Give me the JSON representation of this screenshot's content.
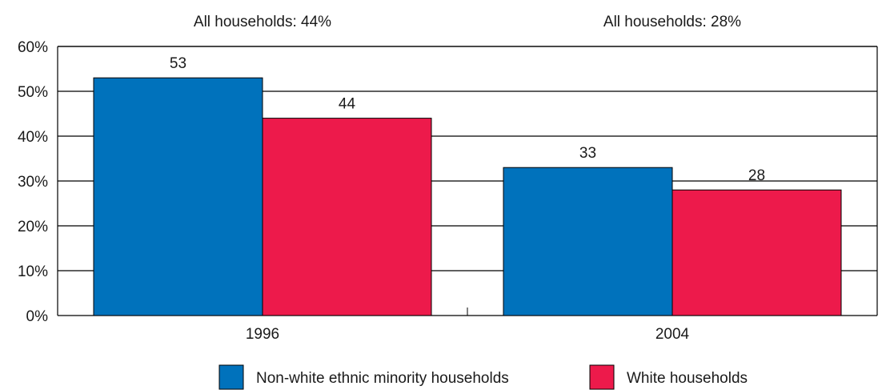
{
  "chart_data": {
    "type": "bar",
    "categories": [
      "1996",
      "2004"
    ],
    "series": [
      {
        "name": "Non-white ethnic minority households",
        "color": "#0072bc",
        "values": [
          53,
          33
        ]
      },
      {
        "name": "White households",
        "color": "#ed1a4b",
        "values": [
          44,
          28
        ]
      }
    ],
    "category_notes": [
      "All households: 44%",
      "All households: 28%"
    ],
    "yticks": [
      "0%",
      "10%",
      "20%",
      "30%",
      "40%",
      "50%",
      "60%"
    ],
    "ylim": [
      0,
      60
    ],
    "title": "",
    "xlabel": "",
    "ylabel": "",
    "grid": true,
    "legend_position": "bottom"
  }
}
